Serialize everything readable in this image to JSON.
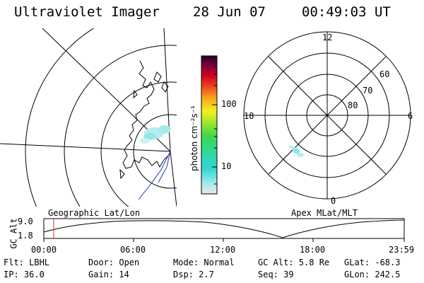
{
  "header": {
    "title": "Ultraviolet Imager",
    "date": "28 Jun 07",
    "time": "00:49:03 UT"
  },
  "colorbar": {
    "unit_label": "photon cm⁻²s⁻¹",
    "ticks": [
      "100",
      "10"
    ],
    "scale": "log"
  },
  "polar_plot": {
    "hour_labels": {
      "top": "12",
      "left": "18",
      "right": "6",
      "bottom": "0"
    },
    "lat_labels": [
      "60",
      "70",
      "80"
    ]
  },
  "panel_labels": {
    "left": "Geographic Lat/Lon",
    "right": "Apex MLat/MLT"
  },
  "altitude_plot": {
    "axis_title": "GC Alt",
    "y_ticks": [
      "9.0",
      "1.8"
    ],
    "x_ticks": [
      "00:00",
      "06:00",
      "12:00",
      "18:00",
      "23:59"
    ]
  },
  "info": {
    "filter": "Flt: LBHL",
    "ip": "IP: 36.0",
    "door": "Door: Open",
    "gain": "Gain: 14",
    "mode": "Mode: Normal",
    "dsp": "Dsp:     2.7",
    "gc_alt": "GC Alt: 5.8 Re",
    "seq": "Seq: 39",
    "glat": "GLat: -68.3",
    "glon": "GLon: 242.5"
  },
  "colors": {
    "coastline": "#000000",
    "satellite_track": "#2233bb",
    "time_marker": "#cc3333",
    "aurora": "#8fe6e6"
  }
}
